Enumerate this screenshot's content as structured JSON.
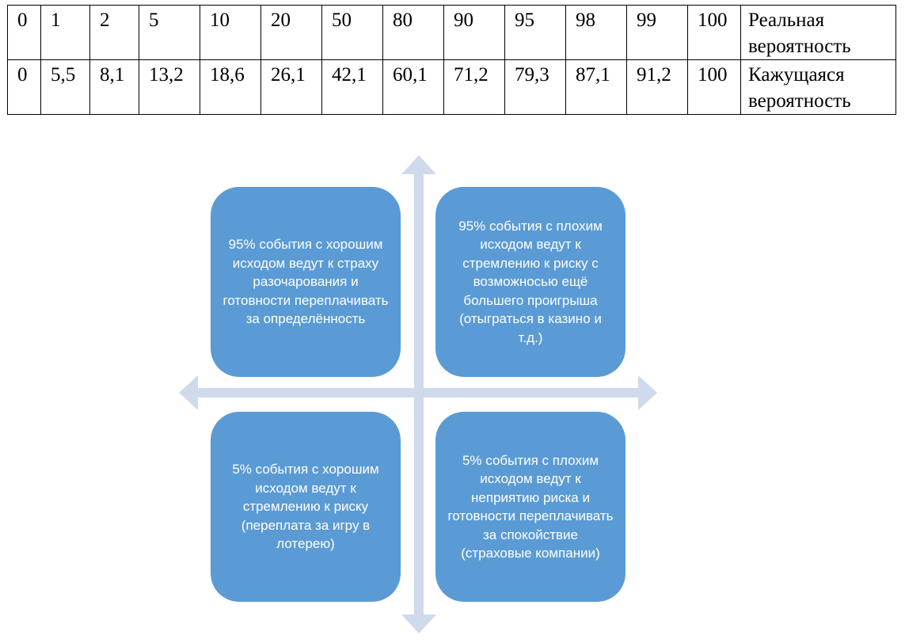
{
  "table": {
    "rows": [
      {
        "values": [
          "0",
          "1",
          "2",
          "5",
          "10",
          "20",
          "50",
          "80",
          "90",
          "95",
          "98",
          "99",
          "100"
        ],
        "label": "Реальная вероятность"
      },
      {
        "values": [
          "0",
          "5,5",
          "8,1",
          "13,2",
          "18,6",
          "26,1",
          "42,1",
          "60,1",
          "71,2",
          "79,3",
          "87,1",
          "91,2",
          "100"
        ],
        "label": "Кажущаяся вероятность"
      }
    ]
  },
  "diagram": {
    "arrow_color": "#cfdaec",
    "box_color": "#5b9bd5",
    "quadrants": {
      "top_left": "95% события с хорошим исходом ведут к страху разочарования и готовности переплачивать за определённость",
      "top_right": "95% события с плохим исходом ведут к стремлению к риску с возможносью ещё большего проигрыша (отыграться в казино и т.д.)",
      "bottom_left": "5% события с хорошим исходом ведут к стремлению к риску (переплата за игру в лотерею)",
      "bottom_right": "5% события с плохим исходом ведут к неприятию риска и готовности переплачивать за спокойствие (страховые компании)"
    }
  }
}
